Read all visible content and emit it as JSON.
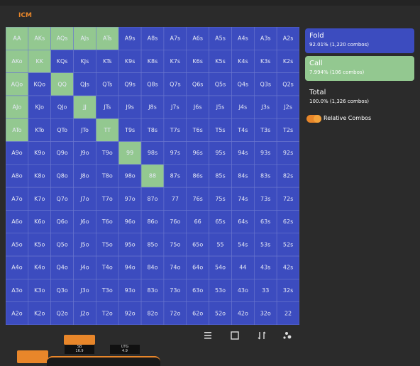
{
  "header": {
    "tab": "ICM"
  },
  "grid": {
    "rows": [
      [
        "AA",
        "AKs",
        "AQs",
        "AJs",
        "ATs",
        "A9s",
        "A8s",
        "A7s",
        "A6s",
        "A5s",
        "A4s",
        "A3s",
        "A2s"
      ],
      [
        "AKo",
        "KK",
        "KQs",
        "KJs",
        "KTs",
        "K9s",
        "K8s",
        "K7s",
        "K6s",
        "K5s",
        "K4s",
        "K3s",
        "K2s"
      ],
      [
        "AQo",
        "KQo",
        "QQ",
        "QJs",
        "QTs",
        "Q9s",
        "Q8s",
        "Q7s",
        "Q6s",
        "Q5s",
        "Q4s",
        "Q3s",
        "Q2s"
      ],
      [
        "AJo",
        "KJo",
        "QJo",
        "JJ",
        "JTs",
        "J9s",
        "J8s",
        "J7s",
        "J6s",
        "J5s",
        "J4s",
        "J3s",
        "J2s"
      ],
      [
        "ATo",
        "KTo",
        "QTo",
        "JTo",
        "TT",
        "T9s",
        "T8s",
        "T7s",
        "T6s",
        "T5s",
        "T4s",
        "T3s",
        "T2s"
      ],
      [
        "A9o",
        "K9o",
        "Q9o",
        "J9o",
        "T9o",
        "99",
        "98s",
        "97s",
        "96s",
        "95s",
        "94s",
        "93s",
        "92s"
      ],
      [
        "A8o",
        "K8o",
        "Q8o",
        "J8o",
        "T8o",
        "98o",
        "88",
        "87s",
        "86s",
        "85s",
        "84s",
        "83s",
        "82s"
      ],
      [
        "A7o",
        "K7o",
        "Q7o",
        "J7o",
        "T7o",
        "97o",
        "87o",
        "77",
        "76s",
        "75s",
        "74s",
        "73s",
        "72s"
      ],
      [
        "A6o",
        "K6o",
        "Q6o",
        "J6o",
        "T6o",
        "96o",
        "86o",
        "76o",
        "66",
        "65s",
        "64s",
        "63s",
        "62s"
      ],
      [
        "A5o",
        "K5o",
        "Q5o",
        "J5o",
        "T5o",
        "95o",
        "85o",
        "75o",
        "65o",
        "55",
        "54s",
        "53s",
        "52s"
      ],
      [
        "A4o",
        "K4o",
        "Q4o",
        "J4o",
        "T4o",
        "94o",
        "84o",
        "74o",
        "64o",
        "54o",
        "44",
        "43s",
        "42s"
      ],
      [
        "A3o",
        "K3o",
        "Q3o",
        "J3o",
        "T3o",
        "93o",
        "83o",
        "73o",
        "63o",
        "53o",
        "43o",
        "33",
        "32s"
      ],
      [
        "A2o",
        "K2o",
        "Q2o",
        "J2o",
        "T2o",
        "92o",
        "82o",
        "72o",
        "62o",
        "52o",
        "42o",
        "32o",
        "22"
      ]
    ],
    "colors": [
      [
        "#93c890",
        "#93c890",
        "#93c890",
        "#93c890",
        "#93c890",
        "#3c4cbf",
        "#3c4cbf",
        "#3c4cbf",
        "#3c4cbf",
        "#3c4cbf",
        "#3c4cbf",
        "#3c4cbf",
        "#3c4cbf"
      ],
      [
        "#93c890",
        "#93c890",
        "#3c4cbf",
        "#3c4cbf",
        "#3c4cbf",
        "#3c4cbf",
        "#3c4cbf",
        "#3c4cbf",
        "#3c4cbf",
        "#3c4cbf",
        "#3c4cbf",
        "#3c4cbf",
        "#3c4cbf"
      ],
      [
        "#93c890",
        "#3c4cbf",
        "#93c890",
        "#3c4cbf",
        "#3c4cbf",
        "#3c4cbf",
        "#3c4cbf",
        "#3c4cbf",
        "#3c4cbf",
        "#3c4cbf",
        "#3c4cbf",
        "#3c4cbf",
        "#3c4cbf"
      ],
      [
        "#93c890",
        "#3c4cbf",
        "#3c4cbf",
        "#93c890",
        "#3c4cbf",
        "#3c4cbf",
        "#3c4cbf",
        "#3c4cbf",
        "#3c4cbf",
        "#3c4cbf",
        "#3c4cbf",
        "#3c4cbf",
        "#3c4cbf"
      ],
      [
        "#93c890",
        "#3c4cbf",
        "#3c4cbf",
        "#3c4cbf",
        "#93c890",
        "#3c4cbf",
        "#3c4cbf",
        "#3c4cbf",
        "#3c4cbf",
        "#3c4cbf",
        "#3c4cbf",
        "#3c4cbf",
        "#3c4cbf"
      ],
      [
        "#3c4cbf",
        "#3c4cbf",
        "#3c4cbf",
        "#3c4cbf",
        "#3c4cbf",
        "#93c890",
        "#3c4cbf",
        "#3c4cbf",
        "#3c4cbf",
        "#3c4cbf",
        "#3c4cbf",
        "#3c4cbf",
        "#3c4cbf"
      ],
      [
        "#3c4cbf",
        "#3c4cbf",
        "#3c4cbf",
        "#3c4cbf",
        "#3c4cbf",
        "#3c4cbf",
        "#93c890",
        "#3c4cbf",
        "#3c4cbf",
        "#3c4cbf",
        "#3c4cbf",
        "#3c4cbf",
        "#3c4cbf"
      ],
      [
        "#3c4cbf",
        "#3c4cbf",
        "#3c4cbf",
        "#3c4cbf",
        "#3c4cbf",
        "#3c4cbf",
        "#3c4cbf",
        "#3c4cbf",
        "#3c4cbf",
        "#3c4cbf",
        "#3c4cbf",
        "#3c4cbf",
        "#3c4cbf"
      ],
      [
        "#3c4cbf",
        "#3c4cbf",
        "#3c4cbf",
        "#3c4cbf",
        "#3c4cbf",
        "#3c4cbf",
        "#3c4cbf",
        "#3c4cbf",
        "#3c4cbf",
        "#3c4cbf",
        "#3c4cbf",
        "#3c4cbf",
        "#3c4cbf"
      ],
      [
        "#3c4cbf",
        "#3c4cbf",
        "#3c4cbf",
        "#3c4cbf",
        "#3c4cbf",
        "#3c4cbf",
        "#3c4cbf",
        "#3c4cbf",
        "#3c4cbf",
        "#3c4cbf",
        "#3c4cbf",
        "#3c4cbf",
        "#3c4cbf"
      ],
      [
        "#3c4cbf",
        "#3c4cbf",
        "#3c4cbf",
        "#3c4cbf",
        "#3c4cbf",
        "#3c4cbf",
        "#3c4cbf",
        "#3c4cbf",
        "#3c4cbf",
        "#3c4cbf",
        "#3c4cbf",
        "#3c4cbf",
        "#3c4cbf"
      ],
      [
        "#3c4cbf",
        "#3c4cbf",
        "#3c4cbf",
        "#3c4cbf",
        "#3c4cbf",
        "#3c4cbf",
        "#3c4cbf",
        "#3c4cbf",
        "#3c4cbf",
        "#3c4cbf",
        "#3c4cbf",
        "#3c4cbf",
        "#3c4cbf"
      ],
      [
        "#3c4cbf",
        "#3c4cbf",
        "#3c4cbf",
        "#3c4cbf",
        "#3c4cbf",
        "#3c4cbf",
        "#3c4cbf",
        "#3c4cbf",
        "#3c4cbf",
        "#3c4cbf",
        "#3c4cbf",
        "#3c4cbf",
        "#3c4cbf"
      ]
    ]
  },
  "summary": {
    "fold": {
      "label": "Fold",
      "detail": "92.01% (1,220 combos)",
      "color": "#3c4cbf"
    },
    "call": {
      "label": "Call",
      "detail": "7.994% (106 combos)",
      "color": "#93c890"
    },
    "total": {
      "label": "Total",
      "detail": "100.0% (1,326 combos)"
    },
    "toggle": "Relative Combos"
  },
  "seats": [
    {
      "name": "SB",
      "stack": "16.9"
    },
    {
      "name": "UTG",
      "stack": "4.9"
    }
  ]
}
